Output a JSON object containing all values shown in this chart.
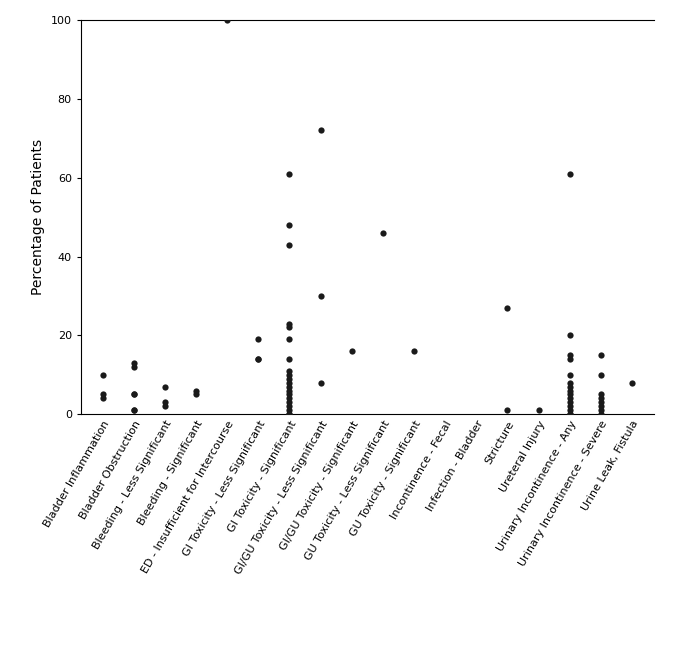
{
  "categories": [
    "Bladder Inflammation",
    "Bladder Obstruction",
    "Bleeding - Less Significant",
    "Bleeding - Significant",
    "ED - Insufficient for Intercourse",
    "GI Toxicity - Less Significant",
    "GI Toxicity - Significant",
    "GI/GU Toxicity - Less Significant",
    "GI/GU Toxicity - Significant",
    "GU Toxicity - Less Significant",
    "GU Toxicity - Significant",
    "Incontinence - Fecal",
    "Infection - Bladder",
    "Stricture",
    "Ureteral Injury",
    "Urinary Incontinence - Any",
    "Urinary Incontinence - Severe",
    "Urine Leak, Fistula"
  ],
  "data_points": {
    "Bladder Inflammation": [
      10,
      5,
      4
    ],
    "Bladder Obstruction": [
      13,
      12,
      5,
      5,
      1,
      1
    ],
    "Bleeding - Less Significant": [
      3,
      2,
      7
    ],
    "Bleeding - Significant": [
      6,
      5
    ],
    "ED - Insufficient for Intercourse": [
      100
    ],
    "GI Toxicity - Less Significant": [
      19,
      14,
      14
    ],
    "GI Toxicity - Significant": [
      61,
      48,
      43,
      23,
      22,
      19,
      14,
      11,
      10,
      9,
      8,
      7,
      6,
      5,
      4,
      3,
      2,
      1,
      0,
      0
    ],
    "GI/GU Toxicity - Less Significant": [
      72,
      30,
      8
    ],
    "GI/GU Toxicity - Significant": [
      16
    ],
    "GU Toxicity - Less Significant": [
      46
    ],
    "GU Toxicity - Significant": [
      16
    ],
    "Incontinence - Fecal": [],
    "Infection - Bladder": [],
    "Stricture": [
      27,
      1
    ],
    "Ureteral Injury": [
      1
    ],
    "Urinary Incontinence - Any": [
      61,
      20,
      15,
      14,
      10,
      8,
      7,
      6,
      5,
      4,
      3,
      2,
      1,
      0,
      0
    ],
    "Urinary Incontinence - Severe": [
      15,
      10,
      5,
      4,
      3,
      2,
      1,
      0
    ],
    "Urine Leak, Fistula": [
      8
    ]
  },
  "ylabel": "Percentage of Patients",
  "ylim": [
    0,
    100
  ],
  "yticks": [
    0,
    20,
    40,
    60,
    80,
    100
  ],
  "marker_color": "#1a1a1a",
  "marker_size": 4.5,
  "bg_color": "#ffffff",
  "tick_label_fontsize": 8,
  "ylabel_fontsize": 10,
  "label_rotation": 60
}
